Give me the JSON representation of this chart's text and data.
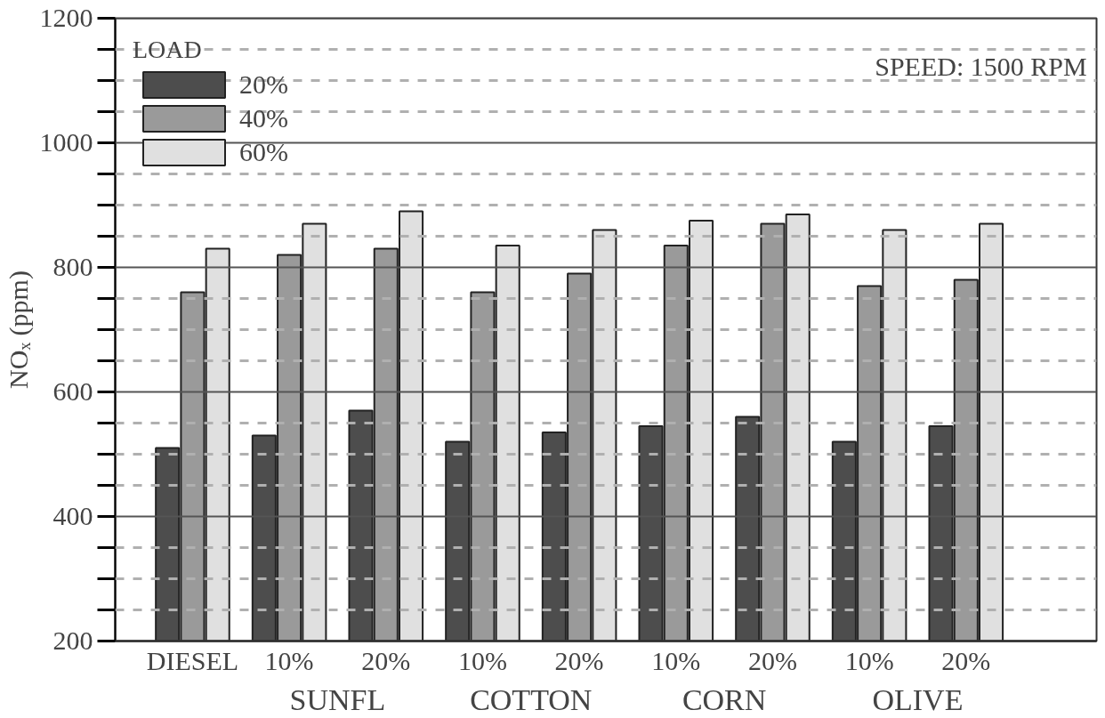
{
  "chart_data": {
    "type": "bar",
    "ylabel": "NOₓ (ppm)",
    "legend_title": "LOAD",
    "categories": [
      "DIESEL",
      "10%",
      "20%",
      "10%",
      "20%",
      "10%",
      "20%",
      "10%",
      "20%"
    ],
    "series": [
      {
        "name": "20%",
        "color": "#4d4d4d",
        "values": [
          510,
          530,
          570,
          520,
          535,
          545,
          560,
          520,
          545
        ]
      },
      {
        "name": "40%",
        "color": "#9a9a9a",
        "values": [
          760,
          820,
          830,
          760,
          790,
          835,
          870,
          770,
          780
        ]
      },
      {
        "name": "60%",
        "color": "#e0e0e0",
        "values": [
          830,
          870,
          890,
          835,
          860,
          875,
          885,
          860,
          870
        ]
      }
    ],
    "annotations": [
      "SPEED: 1500 RPM",
      "SUNFL",
      "COTTON",
      "CORN",
      "OLIVE"
    ],
    "ylim": [
      200,
      1200
    ],
    "yticks": [
      200,
      {
        "value": 250,
        "label": null
      },
      {
        "value": 300,
        "label": null
      },
      {
        "value": 350,
        "label": null
      },
      400,
      {
        "value": 450,
        "label": null
      },
      {
        "value": 500,
        "label": null
      },
      {
        "value": 550,
        "label": null
      },
      600,
      {
        "value": 650,
        "label": null
      },
      {
        "value": 700,
        "label": null
      },
      {
        "value": 750,
        "label": null
      },
      800,
      {
        "value": 850,
        "label": null
      },
      {
        "value": 900,
        "label": null
      },
      {
        "value": 950,
        "label": null
      },
      1000,
      {
        "value": 1050,
        "label": null
      },
      {
        "value": 1100,
        "label": null
      },
      {
        "value": 1150,
        "label": null
      },
      1200
    ],
    "grid": "y",
    "legend": "top left"
  }
}
